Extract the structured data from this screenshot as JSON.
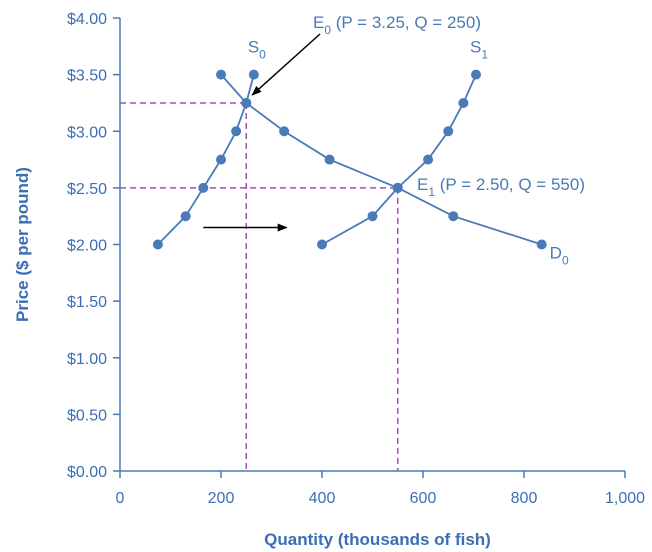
{
  "chart_data": {
    "type": "line",
    "title": "",
    "xlabel": "Quantity (thousands of fish)",
    "ylabel": "Price ($ per pound)",
    "xlim": [
      0,
      1000
    ],
    "ylim": [
      0,
      4
    ],
    "xticks": [
      0,
      200,
      400,
      600,
      800,
      1000
    ],
    "xtick_labels": [
      "0",
      "200",
      "400",
      "600",
      "800",
      "1,000"
    ],
    "yticks": [
      0,
      0.5,
      1,
      1.5,
      2,
      2.5,
      3,
      3.5,
      4
    ],
    "ytick_labels": [
      "$0.00",
      "$0.50",
      "$1.00",
      "$1.50",
      "$2.00",
      "$2.50",
      "$3.00",
      "$3.50",
      "$4.00"
    ],
    "grid": false,
    "colors": {
      "curve": "#4a7ab8",
      "axis_text": "#3a6fb5",
      "guide": "#a050b8",
      "arrow": "#000000"
    },
    "series": [
      {
        "name": "S0",
        "label_main": "S",
        "label_sub": "0",
        "x": [
          75,
          130,
          165,
          200,
          230,
          250,
          265
        ],
        "y": [
          2.0,
          2.25,
          2.5,
          2.75,
          3.0,
          3.25,
          3.5
        ]
      },
      {
        "name": "S1",
        "label_main": "S",
        "label_sub": "1",
        "x": [
          400,
          500,
          550,
          610,
          650,
          680,
          705
        ],
        "y": [
          2.0,
          2.25,
          2.5,
          2.75,
          3.0,
          3.25,
          3.5
        ]
      },
      {
        "name": "D0",
        "label_main": "D",
        "label_sub": "0",
        "x": [
          200,
          250,
          325,
          415,
          550,
          660,
          835
        ],
        "y": [
          3.5,
          3.25,
          3.0,
          2.75,
          2.5,
          2.25,
          2.0
        ]
      }
    ],
    "annotations": [
      {
        "id": "E0",
        "main": "E",
        "sub": "0",
        "text": " (P = 3.25, Q = 250)",
        "x": 250,
        "y": 3.25
      },
      {
        "id": "E1",
        "main": "E",
        "sub": "1",
        "text": " (P = 2.50, Q = 550)",
        "x": 550,
        "y": 2.5
      }
    ],
    "shift_arrow": {
      "from_x": 165,
      "to_x": 330,
      "y": 2.15
    }
  }
}
